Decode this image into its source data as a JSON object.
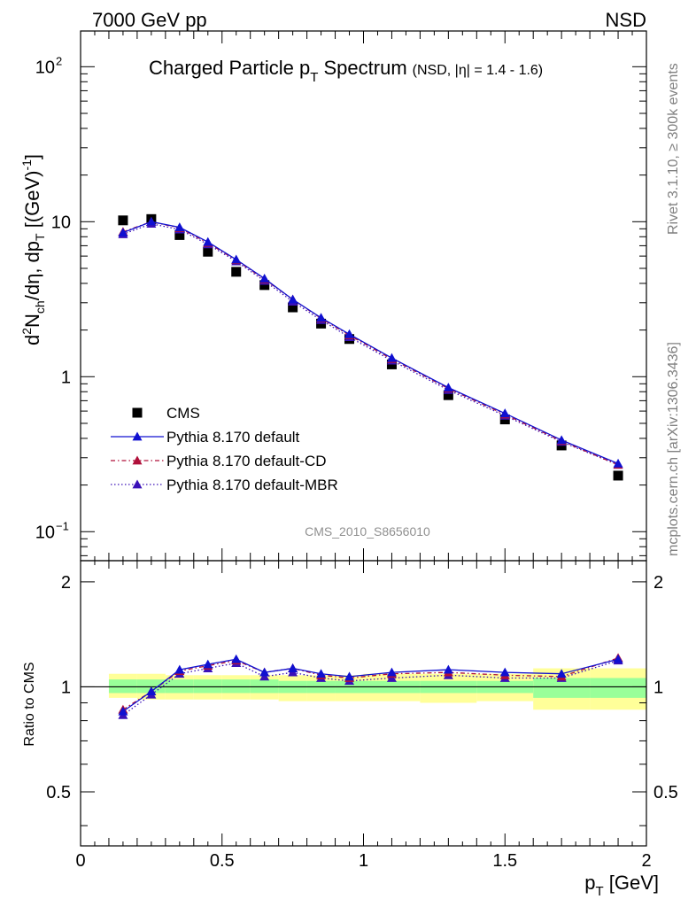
{
  "header": {
    "left": "7000 GeV pp",
    "right": "NSD"
  },
  "side_labels": {
    "rivet": "Rivet 3.1.10, ≥ 300k events",
    "mcplots": "mcplots.cern.ch [arXiv:1306.3436]"
  },
  "chart_data": [
    {
      "type": "scatter",
      "panel": "main",
      "title": "Charged Particle p",
      "title_sub": "T",
      "title_tail": " Spectrum",
      "title_note": "(NSD, |η| = 1.4 - 1.6)",
      "watermark": "CMS_2010_S8656010",
      "ylabel": "d²N_ch/dη, dp_T [(GeV)⁻¹]",
      "yscale": "log",
      "xlim": [
        0,
        2.0
      ],
      "ylim": [
        0.065,
        170
      ],
      "yticks": [
        {
          "value": 0.1,
          "label": "10",
          "sup": "−1"
        },
        {
          "value": 1,
          "label": "1",
          "sup": ""
        },
        {
          "value": 10,
          "label": "10",
          "sup": ""
        },
        {
          "value": 100,
          "label": "10",
          "sup": "2"
        }
      ],
      "legend": [
        {
          "key": "cms",
          "label": "CMS"
        },
        {
          "key": "default",
          "label": "Pythia 8.170 default"
        },
        {
          "key": "cd",
          "label": "Pythia 8.170 default-CD"
        },
        {
          "key": "mbr",
          "label": "Pythia 8.170 default-MBR"
        }
      ],
      "colors": {
        "cms": "#000000",
        "default": "#1010d0",
        "cd": "#b0103a",
        "mbr": "#3a10b8"
      },
      "x": [
        0.15,
        0.25,
        0.35,
        0.45,
        0.55,
        0.65,
        0.75,
        0.85,
        0.95,
        1.1,
        1.3,
        1.5,
        1.7,
        1.9
      ],
      "series": [
        {
          "name": "CMS",
          "key": "cms",
          "values": [
            10.2,
            10.4,
            8.2,
            6.4,
            4.75,
            3.9,
            2.8,
            2.2,
            1.75,
            1.2,
            0.76,
            0.53,
            0.36,
            0.23
          ]
        },
        {
          "name": "Pythia 8.170 default",
          "key": "default",
          "values": [
            8.5,
            10.0,
            9.2,
            7.4,
            5.7,
            4.3,
            3.15,
            2.4,
            1.88,
            1.32,
            0.85,
            0.58,
            0.39,
            0.275
          ]
        },
        {
          "name": "Pythia 8.170 default-CD",
          "key": "cd",
          "values": [
            8.6,
            10.0,
            9.1,
            7.3,
            5.65,
            4.25,
            3.15,
            2.38,
            1.85,
            1.3,
            0.84,
            0.57,
            0.385,
            0.27
          ]
        },
        {
          "name": "Pythia 8.170 default-MBR",
          "key": "mbr",
          "values": [
            8.3,
            9.7,
            8.9,
            7.15,
            5.55,
            4.15,
            3.05,
            2.32,
            1.8,
            1.27,
            0.82,
            0.56,
            0.38,
            0.27
          ]
        }
      ]
    },
    {
      "type": "line",
      "panel": "ratio",
      "ylabel": "Ratio to CMS",
      "xlabel": "p",
      "xlabel_sub": "T",
      "xlabel_tail": " [GeV]",
      "xlim": [
        0,
        2.0
      ],
      "ylim": [
        0.35,
        2.3
      ],
      "yticks": [
        0.5,
        1,
        2
      ],
      "xticks": [
        0,
        0.5,
        1,
        1.5,
        2
      ],
      "band_edges": [
        0.1,
        0.2,
        0.3,
        0.4,
        0.5,
        0.6,
        0.7,
        0.8,
        0.9,
        1.0,
        1.2,
        1.4,
        1.6,
        1.8,
        2.0
      ],
      "band_yellow": [
        [
          0.93,
          1.09
        ],
        [
          0.92,
          1.09
        ],
        [
          0.92,
          1.08
        ],
        [
          0.92,
          1.08
        ],
        [
          0.92,
          1.08
        ],
        [
          0.92,
          1.08
        ],
        [
          0.91,
          1.08
        ],
        [
          0.91,
          1.08
        ],
        [
          0.91,
          1.08
        ],
        [
          0.91,
          1.09
        ],
        [
          0.9,
          1.09
        ],
        [
          0.91,
          1.09
        ],
        [
          0.86,
          1.13
        ],
        [
          0.86,
          1.13
        ]
      ],
      "band_green": [
        [
          0.96,
          1.05
        ],
        [
          0.96,
          1.05
        ],
        [
          0.96,
          1.05
        ],
        [
          0.96,
          1.05
        ],
        [
          0.96,
          1.05
        ],
        [
          0.96,
          1.05
        ],
        [
          0.96,
          1.04
        ],
        [
          0.96,
          1.04
        ],
        [
          0.96,
          1.04
        ],
        [
          0.96,
          1.04
        ],
        [
          0.96,
          1.04
        ],
        [
          0.96,
          1.04
        ],
        [
          0.93,
          1.06
        ],
        [
          0.93,
          1.06
        ]
      ],
      "x": [
        0.15,
        0.25,
        0.35,
        0.45,
        0.55,
        0.65,
        0.75,
        0.85,
        0.95,
        1.1,
        1.3,
        1.5,
        1.7,
        1.9
      ],
      "series": [
        {
          "name": "Pythia 8.170 default",
          "key": "default",
          "values": [
            0.85,
            0.97,
            1.12,
            1.16,
            1.2,
            1.1,
            1.13,
            1.09,
            1.07,
            1.1,
            1.12,
            1.1,
            1.09,
            1.2
          ]
        },
        {
          "name": "Pythia 8.170 default-CD",
          "key": "cd",
          "values": [
            0.86,
            0.97,
            1.11,
            1.15,
            1.19,
            1.1,
            1.13,
            1.08,
            1.06,
            1.09,
            1.1,
            1.08,
            1.07,
            1.21
          ]
        },
        {
          "name": "Pythia 8.170 default-MBR",
          "key": "mbr",
          "values": [
            0.83,
            0.95,
            1.09,
            1.13,
            1.17,
            1.07,
            1.1,
            1.06,
            1.04,
            1.06,
            1.08,
            1.06,
            1.06,
            1.19
          ]
        }
      ]
    }
  ]
}
